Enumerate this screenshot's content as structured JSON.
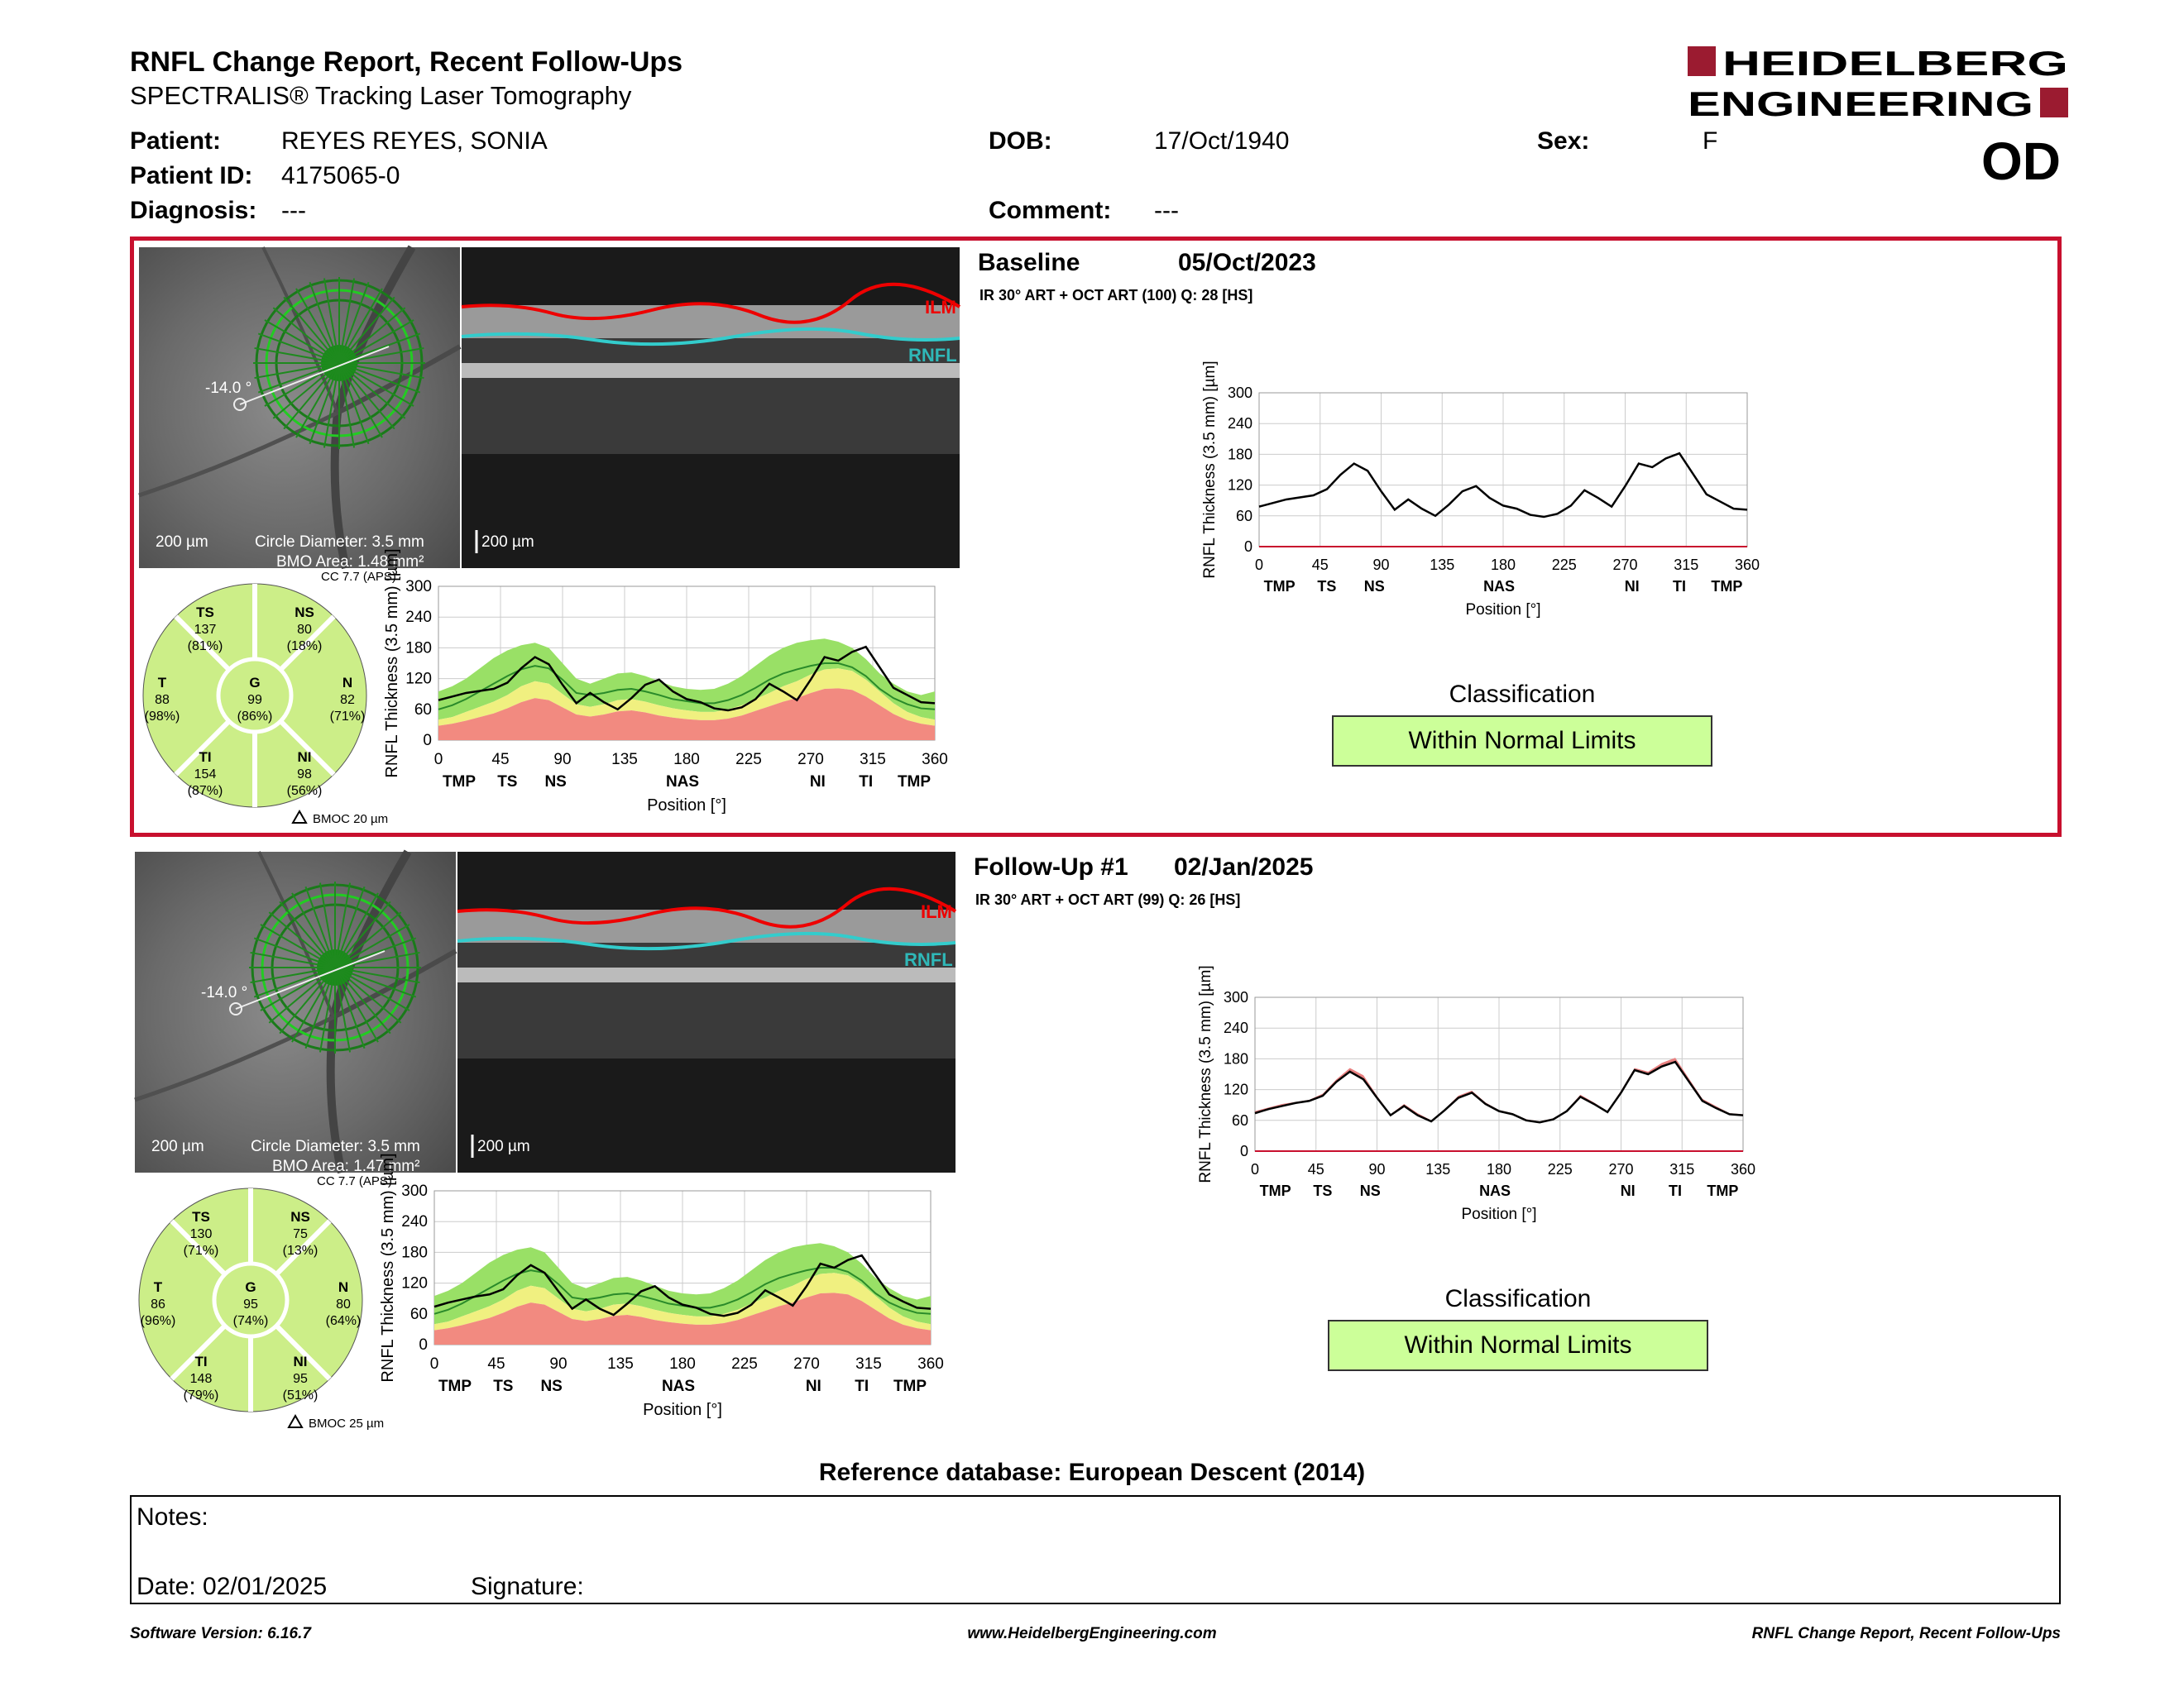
{
  "report_title": "RNFL Change Report, Recent Follow-Ups",
  "subtitle": "SPECTRALIS® Tracking Laser Tomography",
  "logo_line1": "HEIDELBERG",
  "logo_line2": "ENGINEERING",
  "eye": "OD",
  "patient": {
    "name_label": "Patient:",
    "name": "REYES REYES, SONIA",
    "id_label": "Patient ID:",
    "id": "4175065-0",
    "diagnosis_label": "Diagnosis:",
    "diagnosis": "---",
    "dob_label": "DOB:",
    "dob": "17/Oct/1940",
    "comment_label": "Comment:",
    "comment": "---",
    "sex_label": "Sex:",
    "sex": "F"
  },
  "common": {
    "angle": "-14.0 °",
    "scale_fundus": "200 µm",
    "scale_oct": "200 µm",
    "circle_diameter": "Circle Diameter: 3.5 mm",
    "ilm": "ILM",
    "rnfl": "RNFL",
    "cc": "CC 7.7 (APS)",
    "y_axis_label": "RNFL Thickness (3.5 mm) [µm]",
    "x_axis_label": "Position [°]",
    "y_ticks": [
      "0",
      "60",
      "120",
      "180",
      "240",
      "300"
    ],
    "x_ticks": [
      "0",
      "45",
      "90",
      "135",
      "180",
      "225",
      "270",
      "315",
      "360"
    ],
    "region_labels": [
      "TMP",
      "TS",
      "NS",
      "NAS",
      "NI",
      "TI",
      "TMP"
    ],
    "classification_label": "Classification",
    "classification_color": "#ccff99",
    "border_color": "#c8102e"
  },
  "baseline": {
    "heading": "Baseline",
    "date": "05/Oct/2023",
    "scan": "IR 30° ART + OCT ART (100) Q: 28 [HS]",
    "bmo_area": "BMO Area: 1.48 mm²",
    "bmoc": "BMOC 20 µm",
    "classification": "Within Normal Limits",
    "sectors": {
      "TS": {
        "label": "TS",
        "value": "137",
        "pct": "(81%)"
      },
      "NS": {
        "label": "NS",
        "value": "80",
        "pct": "(18%)"
      },
      "T": {
        "label": "T",
        "value": "88",
        "pct": "(98%)"
      },
      "G": {
        "label": "G",
        "value": "99",
        "pct": "(86%)"
      },
      "N": {
        "label": "N",
        "value": "82",
        "pct": "(71%)"
      },
      "TI": {
        "label": "TI",
        "value": "154",
        "pct": "(87%)"
      },
      "NI": {
        "label": "NI",
        "value": "98",
        "pct": "(56%)"
      }
    }
  },
  "followup": {
    "heading": "Follow-Up #1",
    "date": "02/Jan/2025",
    "scan": "IR 30° ART + OCT ART (99) Q: 26 [HS]",
    "bmo_area": "BMO Area: 1.47 mm²",
    "bmoc": "BMOC 25 µm",
    "classification": "Within Normal Limits",
    "sectors": {
      "TS": {
        "label": "TS",
        "value": "130",
        "pct": "(71%)"
      },
      "NS": {
        "label": "NS",
        "value": "75",
        "pct": "(13%)"
      },
      "T": {
        "label": "T",
        "value": "86",
        "pct": "(96%)"
      },
      "G": {
        "label": "G",
        "value": "95",
        "pct": "(74%)"
      },
      "N": {
        "label": "N",
        "value": "80",
        "pct": "(64%)"
      },
      "TI": {
        "label": "TI",
        "value": "148",
        "pct": "(79%)"
      },
      "NI": {
        "label": "NI",
        "value": "95",
        "pct": "(51%)"
      }
    }
  },
  "reference_db": "Reference database: European Descent (2014)",
  "notes": {
    "label": "Notes:",
    "date": "Date: 02/01/2025",
    "signature": "Signature:"
  },
  "footer": {
    "version": "Software Version: 6.16.7",
    "website": "www.HeidelbergEngineering.com",
    "report": "RNFL Change Report, Recent Follow-Ups"
  },
  "chart_data": [
    {
      "type": "line",
      "panel": "baseline",
      "xlabel": "Position [°]",
      "ylabel": "RNFL Thickness (3.5 mm) [µm]",
      "xlim": [
        0,
        360
      ],
      "ylim": [
        0,
        300
      ],
      "x": [
        0,
        10,
        20,
        30,
        40,
        50,
        60,
        70,
        80,
        90,
        100,
        110,
        120,
        130,
        140,
        150,
        160,
        170,
        180,
        190,
        200,
        210,
        220,
        230,
        240,
        250,
        260,
        270,
        280,
        290,
        300,
        310,
        320,
        330,
        340,
        350,
        360
      ],
      "series": [
        {
          "values": [
            78,
            85,
            92,
            96,
            100,
            112,
            140,
            162,
            148,
            108,
            72,
            92,
            74,
            60,
            82,
            108,
            118,
            95,
            80,
            74,
            62,
            58,
            64,
            80,
            110,
            95,
            78,
            118,
            162,
            155,
            172,
            182,
            142,
            102,
            88,
            74,
            72
          ]
        }
      ],
      "normal_band": {
        "lower_5": [
          40,
          45,
          55,
          65,
          75,
          88,
          105,
          115,
          110,
          90,
          70,
          65,
          70,
          78,
          80,
          75,
          68,
          62,
          58,
          55,
          55,
          60,
          68,
          80,
          92,
          105,
          115,
          128,
          138,
          140,
          135,
          118,
          95,
          72,
          55,
          45,
          40
        ],
        "lower_1": [
          28,
          32,
          38,
          45,
          52,
          62,
          74,
          82,
          78,
          64,
          50,
          46,
          50,
          56,
          58,
          54,
          48,
          44,
          41,
          39,
          39,
          42,
          48,
          57,
          66,
          75,
          82,
          92,
          100,
          101,
          98,
          85,
          68,
          51,
          39,
          32,
          28
        ],
        "upper_95": [
          95,
          105,
          120,
          140,
          160,
          175,
          185,
          190,
          180,
          150,
          120,
          110,
          120,
          130,
          132,
          125,
          115,
          105,
          100,
          98,
          100,
          110,
          125,
          145,
          165,
          180,
          190,
          195,
          198,
          192,
          180,
          158,
          130,
          110,
          95,
          88,
          95
        ],
        "mean": [
          60,
          68,
          80,
          95,
          110,
          125,
          138,
          145,
          140,
          118,
          92,
          88,
          92,
          98,
          100,
          95,
          88,
          80,
          76,
          72,
          72,
          78,
          88,
          102,
          118,
          130,
          138,
          145,
          150,
          150,
          142,
          125,
          100,
          82,
          70,
          62,
          60
        ]
      }
    },
    {
      "type": "line",
      "panel": "followup",
      "xlabel": "Position [°]",
      "ylabel": "RNFL Thickness (3.5 mm) [µm]",
      "xlim": [
        0,
        360
      ],
      "ylim": [
        0,
        300
      ],
      "x": [
        0,
        10,
        20,
        30,
        40,
        50,
        60,
        70,
        80,
        90,
        100,
        110,
        120,
        130,
        140,
        150,
        160,
        170,
        180,
        190,
        200,
        210,
        220,
        230,
        240,
        250,
        260,
        270,
        280,
        290,
        300,
        310,
        320,
        330,
        340,
        350,
        360
      ],
      "series": [
        {
          "values": [
            74,
            82,
            88,
            94,
            98,
            108,
            135,
            155,
            140,
            104,
            70,
            88,
            70,
            58,
            80,
            104,
            114,
            92,
            78,
            72,
            60,
            56,
            62,
            78,
            106,
            92,
            76,
            114,
            158,
            150,
            165,
            174,
            136,
            98,
            84,
            72,
            70
          ]
        }
      ],
      "normal_band": {
        "lower_5": [
          40,
          45,
          55,
          65,
          75,
          88,
          105,
          115,
          110,
          90,
          70,
          65,
          70,
          78,
          80,
          75,
          68,
          62,
          58,
          55,
          55,
          60,
          68,
          80,
          92,
          105,
          115,
          128,
          138,
          140,
          135,
          118,
          95,
          72,
          55,
          45,
          40
        ],
        "lower_1": [
          28,
          32,
          38,
          45,
          52,
          62,
          74,
          82,
          78,
          64,
          50,
          46,
          50,
          56,
          58,
          54,
          48,
          44,
          41,
          39,
          39,
          42,
          48,
          57,
          66,
          75,
          82,
          92,
          100,
          101,
          98,
          85,
          68,
          51,
          39,
          32,
          28
        ],
        "upper_95": [
          95,
          105,
          120,
          140,
          160,
          175,
          185,
          190,
          180,
          150,
          120,
          110,
          120,
          130,
          132,
          125,
          115,
          105,
          100,
          98,
          100,
          110,
          125,
          145,
          165,
          180,
          190,
          195,
          198,
          192,
          180,
          158,
          130,
          110,
          95,
          88,
          95
        ],
        "mean": [
          60,
          68,
          80,
          95,
          110,
          125,
          138,
          145,
          140,
          118,
          92,
          88,
          92,
          98,
          100,
          95,
          88,
          80,
          76,
          72,
          72,
          78,
          88,
          102,
          118,
          130,
          138,
          145,
          150,
          150,
          142,
          125,
          100,
          82,
          70,
          62,
          60
        ]
      },
      "change_reference": [
        78,
        85,
        92,
        96,
        100,
        112,
        140,
        162,
        148,
        108,
        72,
        92,
        74,
        60,
        82,
        108,
        118,
        95,
        80,
        74,
        62,
        58,
        64,
        80,
        110,
        95,
        78,
        118,
        162,
        155,
        172,
        182,
        142,
        102,
        88,
        74,
        72
      ]
    }
  ]
}
